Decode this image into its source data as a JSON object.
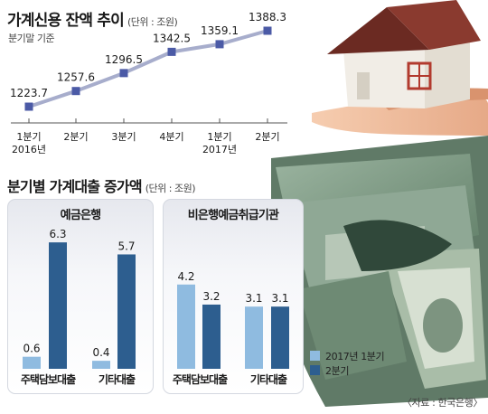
{
  "header": {
    "title": "가계신용 잔액 추이",
    "unit": "(단위 : 조원)",
    "subtitle": "분기말 기준"
  },
  "section2": {
    "title": "분기별 가계대출 증가액",
    "unit": "(단위 : 조원)"
  },
  "colors": {
    "line": "#a7adcc",
    "point": "#4b5aa6",
    "bar_q1": "#8fbbe0",
    "bar_q2": "#2d5e8f"
  },
  "chart_data": [
    {
      "type": "line",
      "title": "가계신용 잔액 추이",
      "unit": "조원",
      "x": [
        "1분기 2016년",
        "2분기",
        "3분기",
        "4분기",
        "1분기 2017년",
        "2분기"
      ],
      "tick_labels_line1": [
        "1분기",
        "2분기",
        "3분기",
        "4분기",
        "1분기",
        "2분기"
      ],
      "tick_labels_line2": [
        "2016년",
        "",
        "",
        "",
        "2017년",
        ""
      ],
      "series": [
        {
          "values": [
            1223.7,
            1257.6,
            1296.5,
            1342.5,
            1359.1,
            1388.3
          ]
        }
      ],
      "value_labels": [
        "1223.7",
        "1257.6",
        "1296.5",
        "1342.5",
        "1359.1",
        "1388.3"
      ],
      "grid": false
    },
    {
      "type": "bar",
      "title": "분기별 가계대출 증가액",
      "unit": "조원",
      "groups": [
        {
          "name": "예금은행",
          "categories": [
            "주택담보대출",
            "기타대출"
          ],
          "series": [
            {
              "name": "2017년 1분기",
              "values": [
                0.6,
                0.4
              ],
              "labels": [
                "0.6",
                "0.4"
              ]
            },
            {
              "name": "2분기",
              "values": [
                6.3,
                5.7
              ],
              "labels": [
                "6.3",
                "5.7"
              ]
            }
          ]
        },
        {
          "name": "비은행예금취급기관",
          "categories": [
            "주택담보대출",
            "기타대출"
          ],
          "series": [
            {
              "name": "2017년 1분기",
              "values": [
                4.2,
                3.1
              ],
              "labels": [
                "4.2",
                "3.1"
              ]
            },
            {
              "name": "2분기",
              "values": [
                3.2,
                3.1
              ],
              "labels": [
                "3.2",
                "3.1"
              ]
            }
          ]
        }
      ],
      "legend": [
        "2017년 1분기",
        "2분기"
      ],
      "legend_position": "bottom-right"
    }
  ],
  "source": "〈자료 : 한국은행〉"
}
